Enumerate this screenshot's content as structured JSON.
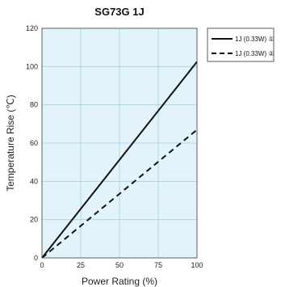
{
  "chart_data": {
    "type": "line",
    "title": "SG73G 1J",
    "xlabel": "Power Rating (%)",
    "ylabel": "Temperature Rise (℃)",
    "xlim": [
      0,
      100
    ],
    "ylim": [
      0,
      120
    ],
    "xticks": [
      "0",
      "25",
      "50",
      "75",
      "100"
    ],
    "yticks": [
      "0",
      "20",
      "40",
      "60",
      "80",
      "100",
      "120"
    ],
    "grid": true,
    "legend_position": "top-right-outside",
    "colors": {
      "plot_background": "#e3f3fa",
      "grid": "#9fd2e6",
      "line": "#111111"
    },
    "series": [
      {
        "name": "1J (0.33W) ①",
        "style": "solid",
        "x": [
          0,
          100
        ],
        "y": [
          0,
          102.5
        ]
      },
      {
        "name": "1J (0.33W) ②",
        "style": "dashed",
        "x": [
          0,
          100
        ],
        "y": [
          0,
          67
        ]
      }
    ]
  }
}
